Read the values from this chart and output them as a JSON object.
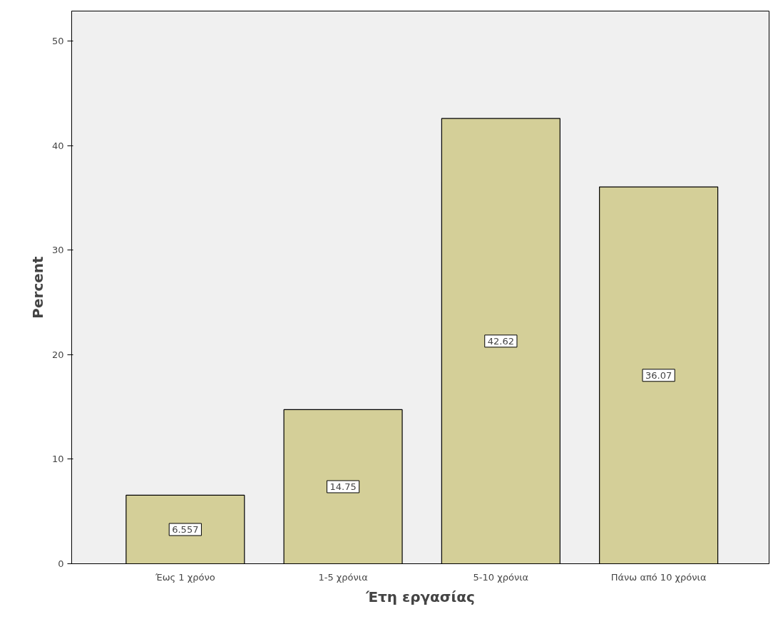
{
  "chart_data": {
    "type": "bar",
    "xlabel": "Έτη εργασίας",
    "ylabel": "Percent",
    "categories": [
      "Έως 1 χρόνο",
      "1-5 χρόνια",
      "5-10 χρόνια",
      "Πάνω από 10 χρόνια"
    ],
    "values": [
      6.557,
      14.75,
      42.62,
      36.07
    ],
    "color": "#d4cf98",
    "ylim": [
      0,
      52.9
    ],
    "yticks": [
      0,
      10,
      20,
      30,
      40,
      50
    ],
    "grid": false,
    "data_labels": true
  }
}
